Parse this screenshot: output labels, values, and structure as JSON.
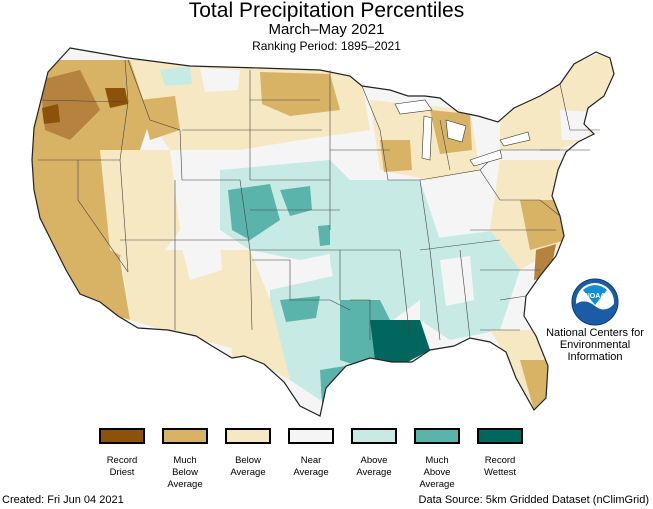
{
  "header": {
    "title": "Total Precipitation Percentiles",
    "subtitle": "March–May 2021",
    "ranking_period": "Ranking Period: 1895–2021"
  },
  "organization": {
    "line1": "National Centers for",
    "line2": "Environmental",
    "line3": "Information",
    "logo_text": "NOAA",
    "logo_icon": "noaa-logo-icon"
  },
  "legend": {
    "items": [
      {
        "label": "Record\nDriest",
        "color": "#8c510a"
      },
      {
        "label": "Much\nBelow\nAverage",
        "color": "#d8b365"
      },
      {
        "label": "Below\nAverage",
        "color": "#f6e8c3"
      },
      {
        "label": "Near\nAverage",
        "color": "#f5f5f5"
      },
      {
        "label": "Above\nAverage",
        "color": "#c7eae5"
      },
      {
        "label": "Much\nAbove\nAverage",
        "color": "#5ab4ac"
      },
      {
        "label": "Record\nWettest",
        "color": "#01665e"
      }
    ]
  },
  "footer": {
    "created": "Created: Fri Jun 04 2021",
    "source": "Data Source: 5km Gridded Dataset (nClimGrid)"
  },
  "colors": {
    "record_driest": "#8c510a",
    "much_below": "#d8b365",
    "below": "#f6e8c3",
    "near": "#f5f5f5",
    "above": "#c7eae5",
    "much_above": "#5ab4ac",
    "record_wettest": "#01665e",
    "border": "#333333"
  }
}
